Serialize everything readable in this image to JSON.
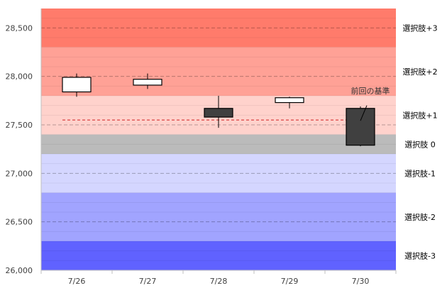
{
  "chart_data": {
    "type": "candlestick",
    "categories": [
      "7/26",
      "7/27",
      "7/28",
      "7/29",
      "7/30"
    ],
    "ohlc": [
      {
        "date": "7/26",
        "open": 27840,
        "high": 28030,
        "low": 27790,
        "close": 27990
      },
      {
        "date": "7/27",
        "open": 27910,
        "high": 28030,
        "low": 27870,
        "close": 27970
      },
      {
        "date": "7/28",
        "open": 27670,
        "high": 27800,
        "low": 27470,
        "close": 27580
      },
      {
        "date": "7/29",
        "open": 27730,
        "high": 27790,
        "low": 27670,
        "close": 27780
      },
      {
        "date": "7/30",
        "open": 27670,
        "high": 27690,
        "low": 27280,
        "close": 27290
      }
    ],
    "ylim": [
      26000,
      28700
    ],
    "yticks": [
      26000,
      26500,
      27000,
      27500,
      28000,
      28500
    ],
    "ytick_labels": [
      "26,000",
      "26,500",
      "27,000",
      "27,500",
      "28,000",
      "28,500"
    ],
    "grid": "horizontal dashed",
    "reference_line": {
      "value": 27550,
      "label": "前回の基準",
      "color": "#d02020"
    },
    "bands": [
      {
        "label": "選択肢+3",
        "from": 28300,
        "to": 28700,
        "color": "#ff7b6b"
      },
      {
        "label": "選択肢+2",
        "from": 27800,
        "to": 28300,
        "color": "#ffa196"
      },
      {
        "label": "選択肢+1",
        "from": 27400,
        "to": 27800,
        "color": "#ffd2cc"
      },
      {
        "label": "選択肢 0",
        "from": 27200,
        "to": 27400,
        "color": "#bbbbbb"
      },
      {
        "label": "選択肢-1",
        "from": 26800,
        "to": 27200,
        "color": "#d4d6ff"
      },
      {
        "label": "選択肢-2",
        "from": 26300,
        "to": 26800,
        "color": "#a1a4ff"
      },
      {
        "label": "選択肢-3",
        "from": 26000,
        "to": 26300,
        "color": "#6062ff"
      }
    ],
    "colors": {
      "up": "#ffffff",
      "down": "#404040",
      "outline": "#000000",
      "axis_text": "#404040"
    }
  }
}
